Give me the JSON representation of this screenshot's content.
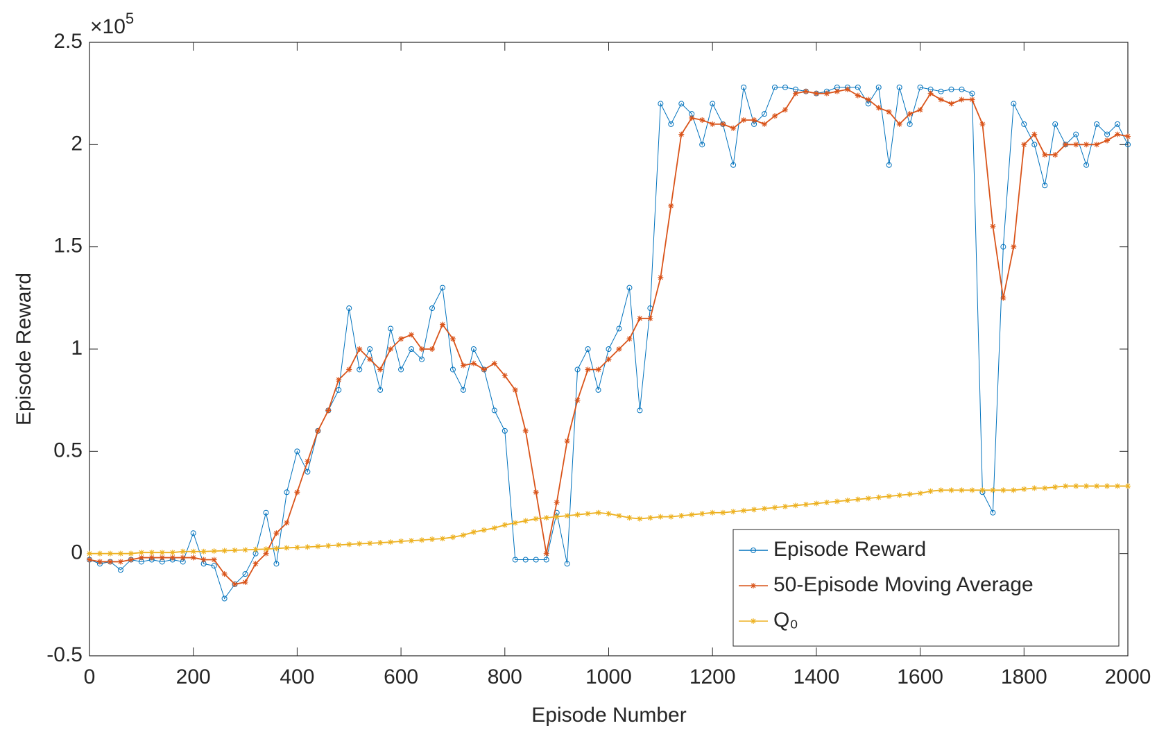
{
  "chart_data": {
    "type": "line",
    "x_label": "Episode Number",
    "y_label": "Episode Reward",
    "y_multiplier": {
      "base": "×10",
      "exponent": "5"
    },
    "x": [
      0,
      20,
      40,
      60,
      80,
      100,
      120,
      140,
      160,
      180,
      200,
      220,
      240,
      260,
      280,
      300,
      320,
      340,
      360,
      380,
      400,
      420,
      440,
      460,
      480,
      500,
      520,
      540,
      560,
      580,
      600,
      620,
      640,
      660,
      680,
      700,
      720,
      740,
      760,
      780,
      800,
      820,
      840,
      860,
      880,
      900,
      920,
      940,
      960,
      980,
      1000,
      1020,
      1040,
      1060,
      1080,
      1100,
      1120,
      1140,
      1160,
      1180,
      1200,
      1220,
      1240,
      1260,
      1280,
      1300,
      1320,
      1340,
      1360,
      1380,
      1400,
      1420,
      1440,
      1460,
      1480,
      1500,
      1520,
      1540,
      1560,
      1580,
      1600,
      1620,
      1640,
      1660,
      1680,
      1700,
      1720,
      1740,
      1760,
      1780,
      1800,
      1820,
      1840,
      1860,
      1880,
      1900,
      1920,
      1940,
      1960,
      1980,
      2000
    ],
    "series": [
      {
        "name": "Episode Reward",
        "color": "#0072BD",
        "marker": "circle",
        "values": [
          -0.03,
          -0.05,
          -0.04,
          -0.08,
          -0.03,
          -0.04,
          -0.03,
          -0.04,
          -0.03,
          -0.04,
          0.1,
          -0.05,
          -0.06,
          -0.22,
          -0.15,
          -0.1,
          0.0,
          0.2,
          -0.05,
          0.3,
          0.5,
          0.4,
          0.6,
          0.7,
          0.8,
          1.2,
          0.9,
          1.0,
          0.8,
          1.1,
          0.9,
          1.0,
          0.95,
          1.2,
          1.3,
          0.9,
          0.8,
          1.0,
          0.9,
          0.7,
          0.6,
          -0.03,
          -0.03,
          -0.03,
          -0.03,
          0.2,
          -0.05,
          0.9,
          1.0,
          0.8,
          1.0,
          1.1,
          1.3,
          0.7,
          1.2,
          2.2,
          2.1,
          2.2,
          2.15,
          2.0,
          2.2,
          2.1,
          1.9,
          2.28,
          2.1,
          2.15,
          2.28,
          2.28,
          2.27,
          2.26,
          2.25,
          2.26,
          2.28,
          2.28,
          2.28,
          2.2,
          2.28,
          1.9,
          2.28,
          2.1,
          2.28,
          2.27,
          2.26,
          2.27,
          2.27,
          2.25,
          0.3,
          0.2,
          1.5,
          2.2,
          2.1,
          2.0,
          1.8,
          2.1,
          2.0,
          2.05,
          1.9,
          2.1,
          2.05,
          2.1,
          2.0
        ]
      },
      {
        "name": "50-Episode Moving Average",
        "color": "#D95319",
        "marker": "star",
        "values": [
          -0.03,
          -0.04,
          -0.04,
          -0.04,
          -0.03,
          -0.02,
          -0.02,
          -0.02,
          -0.02,
          -0.02,
          -0.02,
          -0.03,
          -0.03,
          -0.1,
          -0.15,
          -0.14,
          -0.05,
          0.0,
          0.1,
          0.15,
          0.3,
          0.45,
          0.6,
          0.7,
          0.85,
          0.9,
          1.0,
          0.95,
          0.9,
          1.0,
          1.05,
          1.07,
          1.0,
          1.0,
          1.12,
          1.05,
          0.92,
          0.93,
          0.9,
          0.93,
          0.87,
          0.8,
          0.6,
          0.3,
          0.0,
          0.25,
          0.55,
          0.75,
          0.9,
          0.9,
          0.95,
          1.0,
          1.05,
          1.15,
          1.15,
          1.35,
          1.7,
          2.05,
          2.13,
          2.12,
          2.1,
          2.1,
          2.08,
          2.12,
          2.12,
          2.1,
          2.14,
          2.17,
          2.25,
          2.26,
          2.25,
          2.25,
          2.26,
          2.27,
          2.24,
          2.22,
          2.18,
          2.16,
          2.1,
          2.15,
          2.17,
          2.25,
          2.22,
          2.2,
          2.22,
          2.22,
          2.1,
          1.6,
          1.25,
          1.5,
          2.0,
          2.05,
          1.95,
          1.95,
          2.0,
          2.0,
          2.0,
          2.0,
          2.02,
          2.05,
          2.04
        ]
      },
      {
        "name": "Q₀",
        "color": "#EDB120",
        "marker": "star",
        "values": [
          0,
          0,
          0,
          0,
          0,
          0.005,
          0.005,
          0.005,
          0.005,
          0.01,
          0.01,
          0.01,
          0.012,
          0.014,
          0.016,
          0.018,
          0.02,
          0.022,
          0.025,
          0.028,
          0.03,
          0.032,
          0.035,
          0.038,
          0.042,
          0.045,
          0.048,
          0.05,
          0.053,
          0.056,
          0.06,
          0.063,
          0.066,
          0.07,
          0.073,
          0.08,
          0.09,
          0.105,
          0.115,
          0.125,
          0.14,
          0.15,
          0.16,
          0.17,
          0.175,
          0.18,
          0.185,
          0.19,
          0.195,
          0.2,
          0.195,
          0.185,
          0.175,
          0.17,
          0.175,
          0.18,
          0.18,
          0.185,
          0.19,
          0.195,
          0.2,
          0.2,
          0.205,
          0.21,
          0.215,
          0.22,
          0.225,
          0.23,
          0.235,
          0.24,
          0.245,
          0.25,
          0.255,
          0.26,
          0.265,
          0.27,
          0.275,
          0.28,
          0.285,
          0.29,
          0.295,
          0.305,
          0.31,
          0.31,
          0.31,
          0.31,
          0.31,
          0.31,
          0.31,
          0.31,
          0.315,
          0.32,
          0.32,
          0.325,
          0.33,
          0.33,
          0.33,
          0.33,
          0.33,
          0.33,
          0.33
        ]
      }
    ],
    "xlim": [
      0,
      2000
    ],
    "xticks": [
      0,
      200,
      400,
      600,
      800,
      1000,
      1200,
      1400,
      1600,
      1800,
      2000
    ],
    "ylim": [
      -0.5,
      2.5
    ],
    "yticks": [
      -0.5,
      0,
      0.5,
      1,
      1.5,
      2,
      2.5
    ],
    "legend": "lower right",
    "grid": false
  }
}
